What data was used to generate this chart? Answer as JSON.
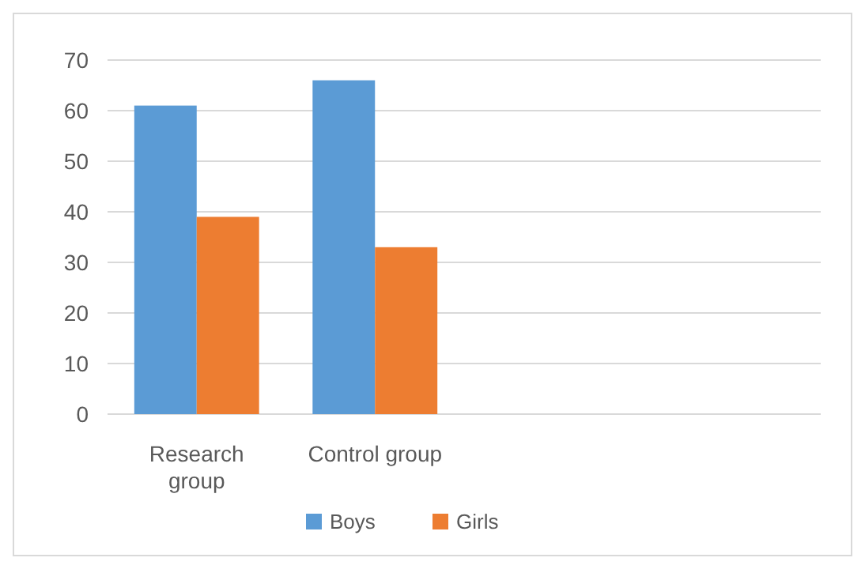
{
  "chart_data": {
    "type": "bar",
    "categories": [
      "Research group",
      "Control group",
      null,
      null
    ],
    "series": [
      {
        "name": "Boys",
        "color": "#5b9bd5",
        "values": [
          61,
          66,
          null,
          null
        ]
      },
      {
        "name": "Girls",
        "color": "#ed7d31",
        "values": [
          39,
          33,
          null,
          null
        ]
      }
    ],
    "ylim": [
      0,
      70
    ],
    "yticks": [
      0,
      10,
      20,
      30,
      40,
      50,
      60,
      70
    ],
    "grid": "y",
    "legend": "bottom"
  }
}
